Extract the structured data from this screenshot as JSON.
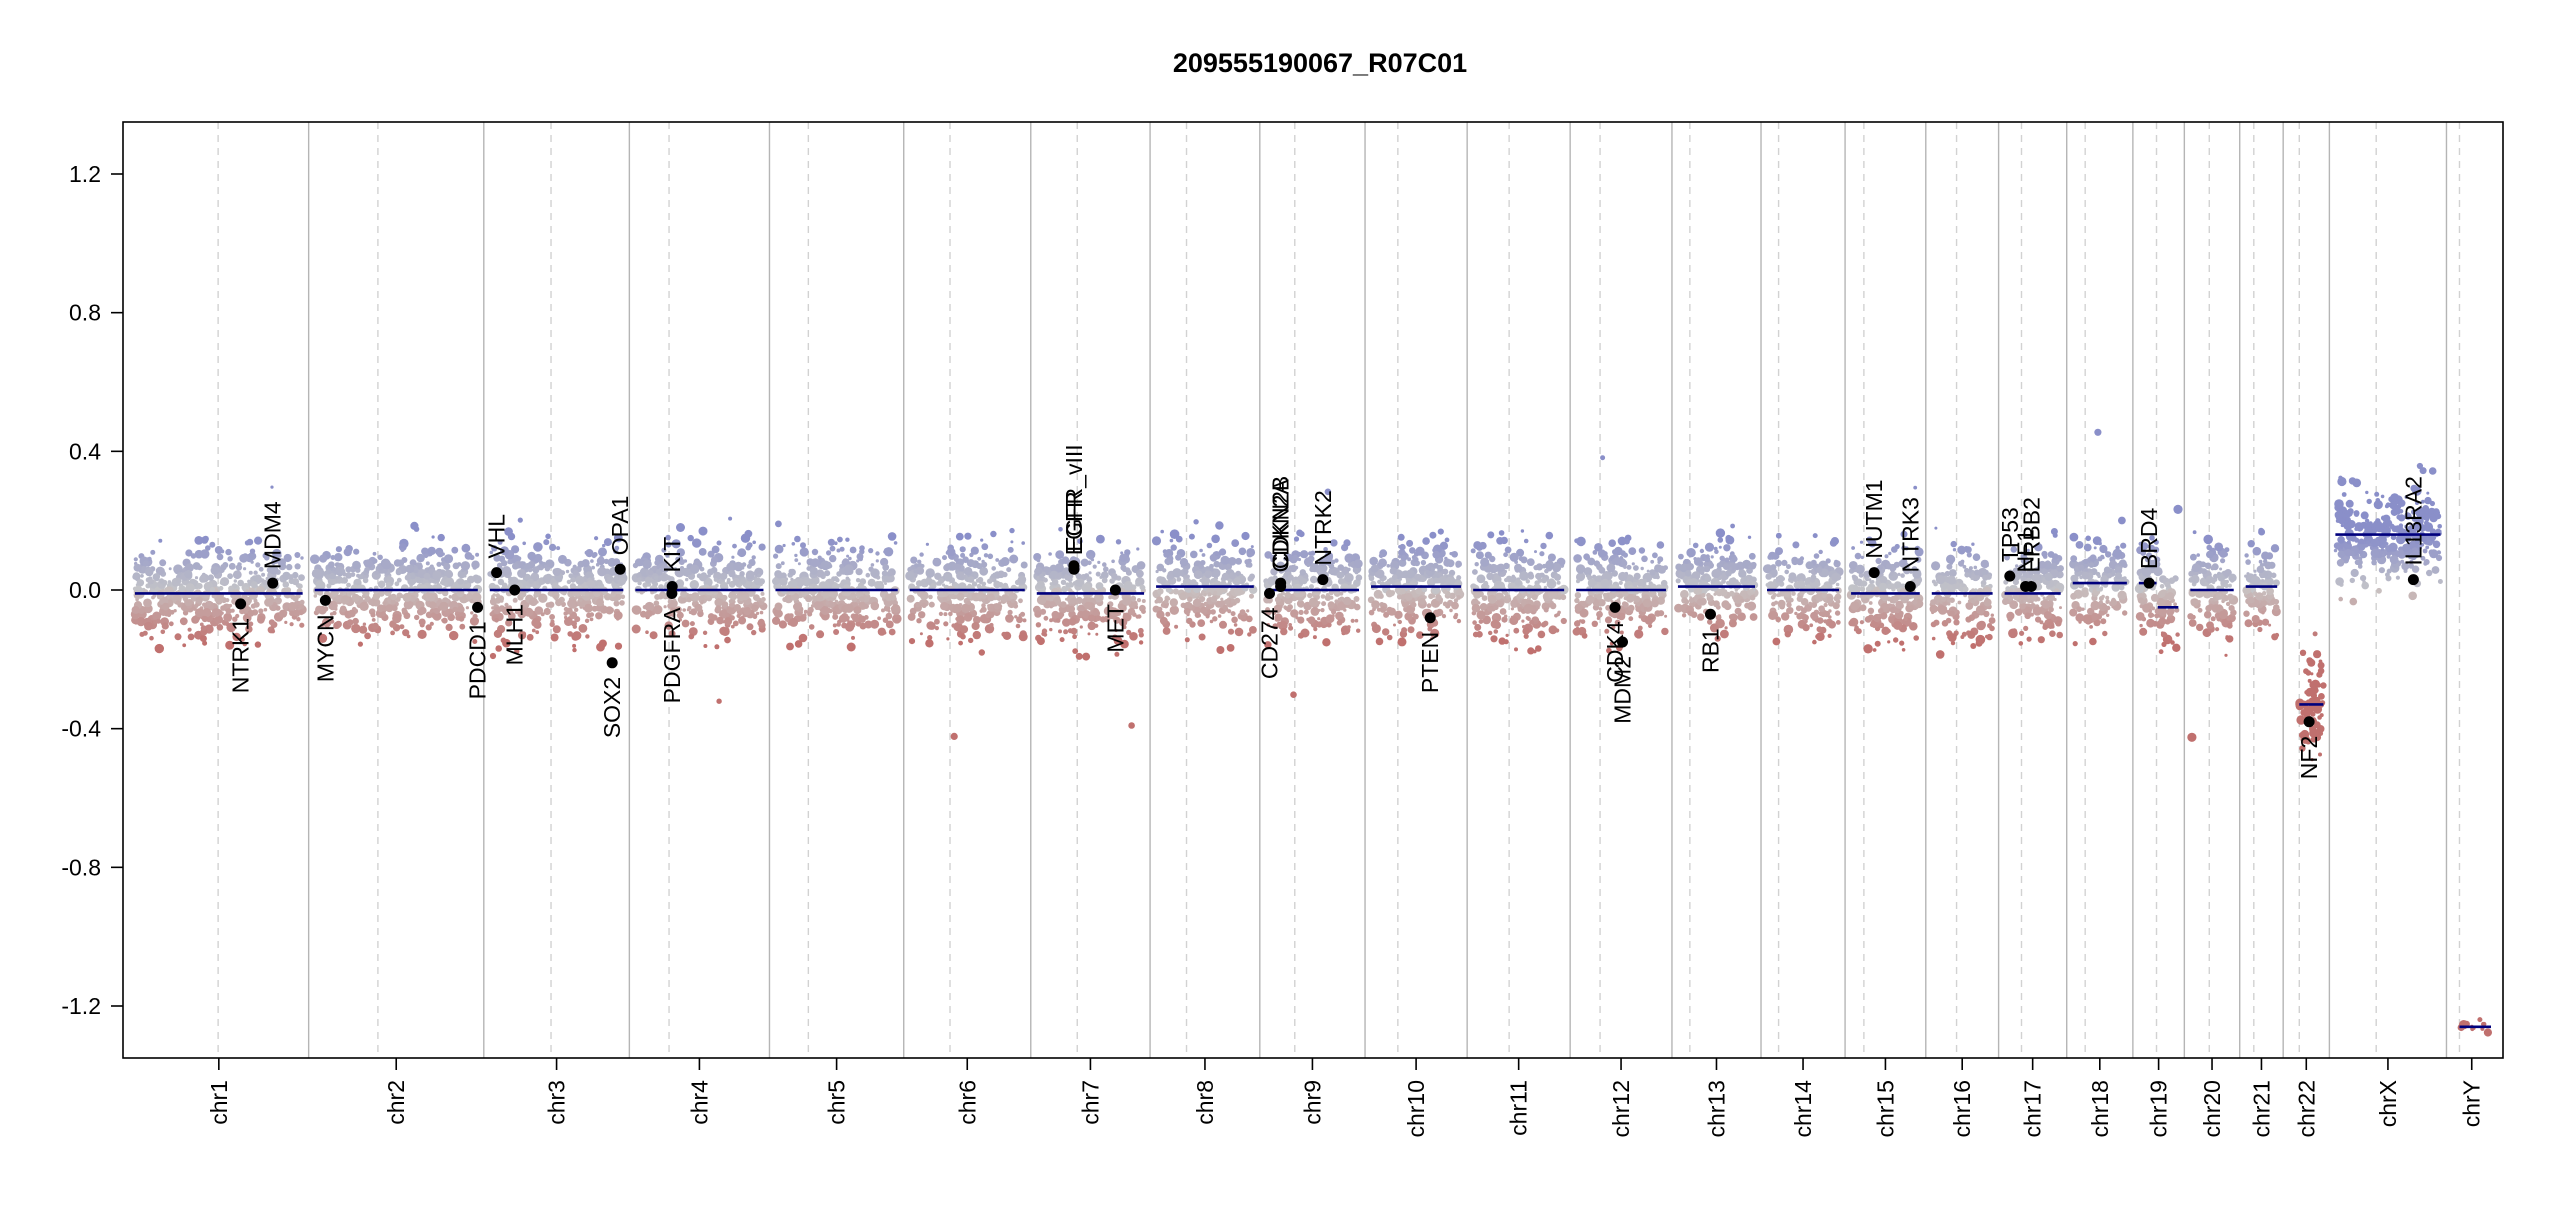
{
  "chart_data": {
    "type": "scatter",
    "title": "209555190067_R07C01",
    "xlabel": "",
    "ylabel": "",
    "ylim": [
      -1.35,
      1.35
    ],
    "y_ticks": [
      {
        "value": 1.2,
        "label": "1.2"
      },
      {
        "value": 0.8,
        "label": "0.8"
      },
      {
        "value": 0.4,
        "label": "0.4"
      },
      {
        "value": 0.0,
        "label": "0.0"
      },
      {
        "value": -0.4,
        "label": "-0.4"
      },
      {
        "value": -0.8,
        "label": "-0.8"
      },
      {
        "value": -1.2,
        "label": "-1.2"
      }
    ],
    "grid": false,
    "chromosomes": [
      {
        "name": "chr1",
        "length": 248.9,
        "centromere": 123.4,
        "segments": [
          {
            "start": 0,
            "end": 248.9,
            "mean": -0.01
          }
        ]
      },
      {
        "name": "chr2",
        "length": 242.2,
        "centromere": 93.9,
        "segments": [
          {
            "start": 0,
            "end": 242.2,
            "mean": 0.0
          }
        ]
      },
      {
        "name": "chr3",
        "length": 198.3,
        "centromere": 90.9,
        "segments": [
          {
            "start": 0,
            "end": 198.3,
            "mean": 0.0
          }
        ]
      },
      {
        "name": "chr4",
        "length": 190.2,
        "centromere": 50.0,
        "segments": [
          {
            "start": 0,
            "end": 190.2,
            "mean": 0.0
          }
        ]
      },
      {
        "name": "chr5",
        "length": 181.5,
        "centromere": 48.8,
        "segments": [
          {
            "start": 0,
            "end": 181.5,
            "mean": 0.0
          }
        ]
      },
      {
        "name": "chr6",
        "length": 170.8,
        "centromere": 59.8,
        "segments": [
          {
            "start": 0,
            "end": 170.8,
            "mean": 0.0
          }
        ]
      },
      {
        "name": "chr7",
        "length": 159.3,
        "centromere": 60.1,
        "segments": [
          {
            "start": 0,
            "end": 159.3,
            "mean": -0.01
          }
        ]
      },
      {
        "name": "chr8",
        "length": 145.1,
        "centromere": 45.2,
        "segments": [
          {
            "start": 0,
            "end": 145.1,
            "mean": 0.01
          }
        ]
      },
      {
        "name": "chr9",
        "length": 138.4,
        "centromere": 43.0,
        "segments": [
          {
            "start": 0,
            "end": 138.4,
            "mean": 0.0
          }
        ]
      },
      {
        "name": "chr10",
        "length": 133.8,
        "centromere": 39.8,
        "segments": [
          {
            "start": 0,
            "end": 133.8,
            "mean": 0.01
          }
        ]
      },
      {
        "name": "chr11",
        "length": 135.1,
        "centromere": 53.4,
        "segments": [
          {
            "start": 0,
            "end": 135.1,
            "mean": 0.0
          }
        ]
      },
      {
        "name": "chr12",
        "length": 133.3,
        "centromere": 35.5,
        "segments": [
          {
            "start": 0,
            "end": 133.3,
            "mean": 0.0
          }
        ]
      },
      {
        "name": "chr13",
        "length": 114.4,
        "centromere": 17.7,
        "segments": [
          {
            "start": 0,
            "end": 114.4,
            "mean": 0.01
          }
        ]
      },
      {
        "name": "chr14",
        "length": 107.0,
        "centromere": 17.2,
        "segments": [
          {
            "start": 0,
            "end": 107.0,
            "mean": 0.0
          }
        ]
      },
      {
        "name": "chr15",
        "length": 102.0,
        "centromere": 19.0,
        "segments": [
          {
            "start": 0,
            "end": 102.0,
            "mean": -0.01
          }
        ]
      },
      {
        "name": "chr16",
        "length": 90.3,
        "centromere": 36.8,
        "segments": [
          {
            "start": 0,
            "end": 90.3,
            "mean": -0.01
          }
        ]
      },
      {
        "name": "chr17",
        "length": 83.3,
        "centromere": 25.1,
        "segments": [
          {
            "start": 0,
            "end": 83.3,
            "mean": -0.01
          }
        ]
      },
      {
        "name": "chr18",
        "length": 80.4,
        "centromere": 18.5,
        "segments": [
          {
            "start": 0,
            "end": 80.4,
            "mean": 0.02
          }
        ]
      },
      {
        "name": "chr19",
        "length": 58.6,
        "centromere": 26.2,
        "segments": [
          {
            "start": 0,
            "end": 26.2,
            "mean": 0.02
          },
          {
            "start": 28.0,
            "end": 58.6,
            "mean": -0.05
          }
        ]
      },
      {
        "name": "chr20",
        "length": 64.4,
        "centromere": 28.1,
        "segments": [
          {
            "start": 0,
            "end": 64.4,
            "mean": 0.0
          }
        ]
      },
      {
        "name": "chr21",
        "length": 46.7,
        "centromere": 12.0,
        "segments": [
          {
            "start": 0,
            "end": 46.7,
            "mean": 0.01
          }
        ]
      },
      {
        "name": "chr22",
        "length": 50.8,
        "centromere": 15.0,
        "segments": [
          {
            "start": 15.0,
            "end": 50.8,
            "mean": -0.33
          }
        ]
      },
      {
        "name": "chrX",
        "length": 156.0,
        "centromere": 60.6,
        "segments": [
          {
            "start": 0,
            "end": 156.0,
            "mean": 0.16
          }
        ]
      },
      {
        "name": "chrY",
        "length": 57.2,
        "centromere": 10.4,
        "segments": [
          {
            "start": 10.4,
            "end": 57.2,
            "mean": -1.26
          }
        ]
      }
    ],
    "genes": [
      {
        "name": "NTRK1",
        "chr": "chr1",
        "pos": 156.8,
        "value": -0.04,
        "label_side": "below"
      },
      {
        "name": "MDM4",
        "chr": "chr1",
        "pos": 204.5,
        "value": 0.02,
        "label_side": "above"
      },
      {
        "name": "MYCN",
        "chr": "chr2",
        "pos": 15.9,
        "value": -0.03,
        "label_side": "below"
      },
      {
        "name": "PDCD1",
        "chr": "chr2",
        "pos": 241.9,
        "value": -0.05,
        "label_side": "below"
      },
      {
        "name": "VHL",
        "chr": "chr3",
        "pos": 10.1,
        "value": 0.05,
        "label_side": "above"
      },
      {
        "name": "MLH1",
        "chr": "chr3",
        "pos": 37.0,
        "value": 0.0,
        "label_side": "below"
      },
      {
        "name": "SOX2",
        "chr": "chr3",
        "pos": 181.7,
        "value": -0.21,
        "label_side": "below"
      },
      {
        "name": "OPA1",
        "chr": "chr3",
        "pos": 193.6,
        "value": 0.06,
        "label_side": "above"
      },
      {
        "name": "PDGFRA",
        "chr": "chr4",
        "pos": 54.2,
        "value": -0.01,
        "label_side": "below"
      },
      {
        "name": "KIT",
        "chr": "chr4",
        "pos": 54.7,
        "value": 0.01,
        "label_side": "above"
      },
      {
        "name": "EGFR_vIII",
        "chr": "chr7",
        "pos": 55.1,
        "value": 0.07,
        "label_side": "above"
      },
      {
        "name": "EGFR",
        "chr": "chr7",
        "pos": 55.2,
        "value": 0.06,
        "label_side": "above"
      },
      {
        "name": "MET",
        "chr": "chr7",
        "pos": 116.7,
        "value": 0.0,
        "label_side": "below"
      },
      {
        "name": "CD274",
        "chr": "chr9",
        "pos": 5.5,
        "value": -0.01,
        "label_side": "below"
      },
      {
        "name": "CDKN2A",
        "chr": "chr9",
        "pos": 21.97,
        "value": 0.01,
        "label_side": "above"
      },
      {
        "name": "CDKN2B",
        "chr": "chr9",
        "pos": 22.0,
        "value": 0.02,
        "label_side": "above"
      },
      {
        "name": "NTRK2",
        "chr": "chr9",
        "pos": 84.7,
        "value": 0.03,
        "label_side": "above"
      },
      {
        "name": "PTEN",
        "chr": "chr10",
        "pos": 87.9,
        "value": -0.08,
        "label_side": "below"
      },
      {
        "name": "CDK4",
        "chr": "chr12",
        "pos": 57.7,
        "value": -0.05,
        "label_side": "below"
      },
      {
        "name": "MDM2",
        "chr": "chr12",
        "pos": 68.8,
        "value": -0.15,
        "label_side": "below"
      },
      {
        "name": "RB1",
        "chr": "chr13",
        "pos": 48.3,
        "value": -0.07,
        "label_side": "below"
      },
      {
        "name": "NUTM1",
        "chr": "chr15",
        "pos": 34.3,
        "value": 0.05,
        "label_side": "above"
      },
      {
        "name": "NTRK3",
        "chr": "chr15",
        "pos": 87.9,
        "value": 0.01,
        "label_side": "above"
      },
      {
        "name": "TP53",
        "chr": "chr17",
        "pos": 7.7,
        "value": 0.04,
        "label_side": "above"
      },
      {
        "name": "NF1",
        "chr": "chr17",
        "pos": 31.1,
        "value": 0.01,
        "label_side": "above"
      },
      {
        "name": "ERBB2",
        "chr": "chr17",
        "pos": 39.7,
        "value": 0.01,
        "label_side": "above"
      },
      {
        "name": "BRD4",
        "chr": "chr19",
        "pos": 15.2,
        "value": 0.02,
        "label_side": "above"
      },
      {
        "name": "NF2",
        "chr": "chr22",
        "pos": 29.6,
        "value": -0.38,
        "label_side": "below"
      },
      {
        "name": "IL13RA2",
        "chr": "chrX",
        "pos": 115.8,
        "value": 0.03,
        "label_side": "above"
      }
    ],
    "colors": {
      "gain_points": "#8a8fc9",
      "loss_points": "#c0706e",
      "neutral_points": "#c4c4c4",
      "segment_line": "#00007d",
      "chr_boundary": "#b5b5b5",
      "centromere": "#d2d2d2",
      "gene_marker": "#000000"
    }
  }
}
